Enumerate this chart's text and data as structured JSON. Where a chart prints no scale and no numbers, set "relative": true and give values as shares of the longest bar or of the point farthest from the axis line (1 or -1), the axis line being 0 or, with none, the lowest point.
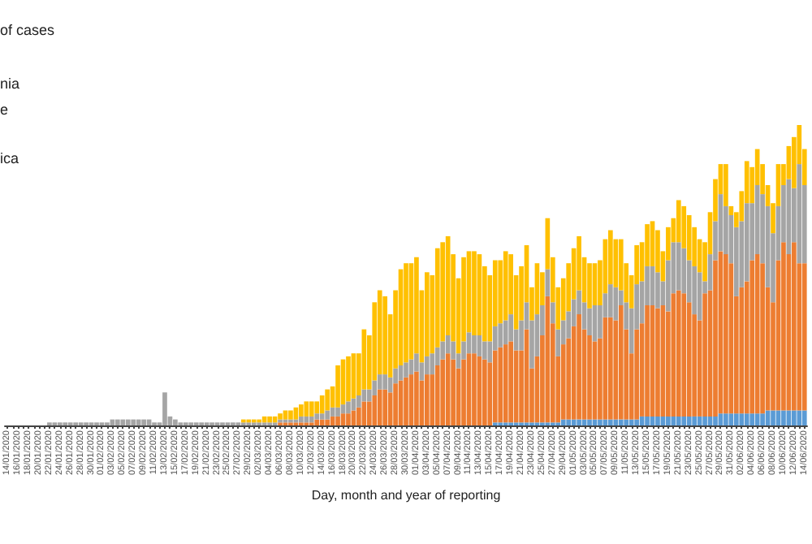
{
  "chart_data": {
    "type": "bar",
    "stacked": true,
    "relative": true,
    "xlabel": "Day, month and year of reporting",
    "annotations": [
      "of cases",
      "nia",
      "e",
      "ica"
    ],
    "categories": [
      "14/01/2020",
      null,
      "16/01/2020",
      null,
      "18/01/2020",
      null,
      "20/01/2020",
      null,
      "22/01/2020",
      null,
      "24/01/2020",
      null,
      "26/01/2020",
      null,
      "28/01/2020",
      null,
      "30/01/2020",
      null,
      "01/02/2020",
      null,
      "03/02/2020",
      null,
      "05/02/2020",
      null,
      "07/02/2020",
      null,
      "09/02/2020",
      null,
      "11/02/2020",
      null,
      "13/02/2020",
      null,
      "15/02/2020",
      null,
      "17/02/2020",
      null,
      "19/02/2020",
      null,
      "21/02/2020",
      null,
      "23/02/2020",
      null,
      "25/02/2020",
      null,
      "27/02/2020",
      null,
      "29/02/2020",
      null,
      "02/03/2020",
      null,
      "04/03/2020",
      null,
      "06/03/2020",
      null,
      "08/03/2020",
      null,
      "10/03/2020",
      null,
      "12/03/2020",
      null,
      "14/03/2020",
      null,
      "16/03/2020",
      null,
      "18/03/2020",
      null,
      "20/03/2020",
      null,
      "22/03/2020",
      null,
      "24/03/2020",
      null,
      "26/03/2020",
      null,
      "28/03/2020",
      null,
      "30/03/2020",
      null,
      "01/04/2020",
      null,
      "03/04/2020",
      null,
      "05/04/2020",
      null,
      "07/04/2020",
      null,
      "09/04/2020",
      null,
      "11/04/2020",
      null,
      "13/04/2020",
      null,
      "15/04/2020",
      null,
      "17/04/2020",
      null,
      "19/04/2020",
      null,
      "21/04/2020",
      null,
      "23/04/2020",
      null,
      "25/04/2020",
      null,
      "27/04/2020",
      null,
      "29/04/2020",
      null,
      "01/05/2020",
      null,
      "03/05/2020",
      null,
      "05/05/2020",
      null,
      "07/05/2020",
      null,
      "09/05/2020",
      null,
      "11/05/2020",
      null,
      "13/05/2020",
      null,
      "15/05/2020",
      null,
      "17/05/2020",
      null,
      "19/05/2020",
      null,
      "21/05/2020",
      null,
      "23/05/2020",
      null,
      "25/05/2020",
      null,
      "27/05/2020",
      null,
      "29/05/2020",
      null,
      "31/05/2020",
      null,
      "02/06/2020",
      null,
      "04/06/2020",
      null,
      "06/06/2020",
      null,
      "08/06/2020",
      null,
      "10/06/2020",
      null,
      "12/06/2020",
      null,
      "14/06/2020"
    ],
    "series": [
      {
        "color": "#5b9bd5",
        "values": [
          null,
          null,
          null,
          null,
          null,
          null,
          null,
          null,
          null,
          null,
          null,
          null,
          null,
          null,
          null,
          null,
          null,
          null,
          null,
          null,
          null,
          null,
          null,
          null,
          null,
          null,
          null,
          null,
          null,
          null,
          null,
          null,
          null,
          null,
          null,
          null,
          null,
          null,
          null,
          null,
          null,
          null,
          null,
          null,
          null,
          null,
          null,
          null,
          null,
          null,
          null,
          null,
          null,
          null,
          null,
          null,
          null,
          null,
          null,
          null,
          null,
          null,
          null,
          null,
          null,
          null,
          null,
          null,
          null,
          null,
          null,
          null,
          null,
          null,
          null,
          null,
          null,
          null,
          null,
          null,
          null,
          null,
          null,
          null,
          null,
          null,
          null,
          null,
          null,
          null,
          null,
          null,
          null,
          0.01,
          0.01,
          0.01,
          0.01,
          0.01,
          0.01,
          0.01,
          0.01,
          0.01,
          0.01,
          0.01,
          0.01,
          0.01,
          0.02,
          0.02,
          0.02,
          0.02,
          0.02,
          0.02,
          0.02,
          0.02,
          0.02,
          0.02,
          0.02,
          0.02,
          0.02,
          0.02,
          0.02,
          0.03,
          0.03,
          0.03,
          0.03,
          0.03,
          0.03,
          0.03,
          0.03,
          0.03,
          0.03,
          0.03,
          0.03,
          0.03,
          0.03,
          0.03,
          0.04,
          0.04,
          0.04,
          0.04,
          0.04,
          0.04,
          0.04,
          0.04,
          0.04,
          0.05,
          0.05,
          0.05,
          0.05,
          0.05,
          0.05,
          0.05,
          0.05
        ]
      },
      {
        "color": "#ed7d31",
        "values": [
          null,
          null,
          null,
          null,
          null,
          null,
          null,
          null,
          null,
          null,
          null,
          null,
          null,
          null,
          null,
          null,
          null,
          null,
          null,
          null,
          null,
          null,
          null,
          null,
          null,
          null,
          null,
          null,
          null,
          null,
          null,
          null,
          null,
          null,
          null,
          null,
          null,
          null,
          null,
          null,
          null,
          null,
          null,
          null,
          null,
          null,
          null,
          null,
          null,
          null,
          null,
          null,
          0.01,
          0.01,
          0.01,
          0.01,
          0.01,
          0.01,
          0.01,
          0.02,
          0.02,
          0.02,
          0.03,
          0.03,
          0.04,
          0.04,
          0.05,
          0.06,
          0.08,
          0.08,
          0.1,
          0.12,
          0.12,
          0.11,
          0.14,
          0.15,
          0.16,
          0.17,
          0.18,
          0.15,
          0.17,
          0.17,
          0.2,
          0.22,
          0.24,
          0.22,
          0.19,
          0.22,
          0.24,
          0.24,
          0.23,
          0.22,
          0.21,
          0.24,
          0.25,
          0.26,
          0.27,
          0.24,
          0.24,
          0.31,
          0.18,
          0.22,
          0.29,
          0.42,
          0.33,
          0.22,
          0.25,
          0.27,
          0.31,
          0.35,
          0.3,
          0.28,
          0.26,
          0.27,
          0.34,
          0.34,
          0.33,
          0.38,
          0.3,
          0.22,
          0.3,
          0.31,
          0.37,
          0.37,
          0.36,
          0.37,
          0.35,
          0.41,
          0.42,
          0.41,
          0.38,
          0.34,
          0.32,
          0.41,
          0.42,
          0.52,
          0.54,
          0.53,
          0.5,
          0.39,
          0.42,
          0.44,
          0.51,
          0.53,
          0.5,
          0.41,
          0.36,
          0.5,
          0.56,
          0.52,
          0.56,
          0.49,
          0.49
        ]
      },
      {
        "color": "#a5a5a5",
        "values": [
          null,
          null,
          null,
          null,
          null,
          null,
          null,
          null,
          0.01,
          0.01,
          0.01,
          0.01,
          0.01,
          0.01,
          0.01,
          0.01,
          0.01,
          0.01,
          0.01,
          0.01,
          0.02,
          0.02,
          0.02,
          0.02,
          0.02,
          0.02,
          0.02,
          0.02,
          0.01,
          0.01,
          0.11,
          0.03,
          0.02,
          0.01,
          0.01,
          0.01,
          0.01,
          0.01,
          0.01,
          0.01,
          0.01,
          0.01,
          0.01,
          0.01,
          0.01,
          0.01,
          0.01,
          0.01,
          0.01,
          0.01,
          0.01,
          0.01,
          0.01,
          0.01,
          0.01,
          0.01,
          0.02,
          0.02,
          0.02,
          0.02,
          0.02,
          0.03,
          0.03,
          0.03,
          0.03,
          0.04,
          0.04,
          0.04,
          0.04,
          0.04,
          0.05,
          0.05,
          0.05,
          0.05,
          0.05,
          0.05,
          0.05,
          0.05,
          0.06,
          0.06,
          0.06,
          0.07,
          0.06,
          0.06,
          0.06,
          0.06,
          0.05,
          0.06,
          0.07,
          0.06,
          0.07,
          0.06,
          0.07,
          0.08,
          0.08,
          0.08,
          0.09,
          0.07,
          0.1,
          0.09,
          0.16,
          0.14,
          0.1,
          0.09,
          0.07,
          0.09,
          0.08,
          0.09,
          0.09,
          0.08,
          0.09,
          0.09,
          0.12,
          0.11,
          0.08,
          0.11,
          0.11,
          0.05,
          0.09,
          0.15,
          0.15,
          0.14,
          0.13,
          0.13,
          0.12,
          0.08,
          0.17,
          0.17,
          0.16,
          0.15,
          0.14,
          0.16,
          0.16,
          0.04,
          0.12,
          0.13,
          0.19,
          0.16,
          0.16,
          0.23,
          0.22,
          0.26,
          0.19,
          0.23,
          0.23,
          0.27,
          0.23,
          0.18,
          0.19,
          0.25,
          0.18,
          0.33,
          0.26
        ]
      },
      {
        "color": "#ffc000",
        "values": [
          null,
          null,
          null,
          null,
          null,
          null,
          null,
          null,
          null,
          null,
          null,
          null,
          null,
          null,
          null,
          null,
          null,
          null,
          null,
          null,
          null,
          null,
          null,
          null,
          null,
          null,
          null,
          null,
          null,
          null,
          null,
          null,
          null,
          null,
          null,
          null,
          null,
          null,
          null,
          null,
          null,
          null,
          null,
          null,
          null,
          0.01,
          0.01,
          0.01,
          0.01,
          0.02,
          0.02,
          0.02,
          0.02,
          0.03,
          0.03,
          0.04,
          0.04,
          0.05,
          0.05,
          0.04,
          0.06,
          0.07,
          0.07,
          0.14,
          0.15,
          0.15,
          0.15,
          0.14,
          0.2,
          0.18,
          0.26,
          0.28,
          0.26,
          0.21,
          0.26,
          0.32,
          0.33,
          0.32,
          0.32,
          0.24,
          0.28,
          0.26,
          0.33,
          0.33,
          0.33,
          0.29,
          0.25,
          0.28,
          0.27,
          0.28,
          0.27,
          0.25,
          0.22,
          0.22,
          0.21,
          0.23,
          0.2,
          0.18,
          0.18,
          0.19,
          0.11,
          0.17,
          0.11,
          0.17,
          0.15,
          0.14,
          0.14,
          0.16,
          0.17,
          0.18,
          0.15,
          0.15,
          0.14,
          0.15,
          0.18,
          0.18,
          0.16,
          0.17,
          0.13,
          0.11,
          0.13,
          0.13,
          0.14,
          0.15,
          0.14,
          0.1,
          0.11,
          0.08,
          0.14,
          0.14,
          0.15,
          0.13,
          0.11,
          0.13,
          0.14,
          0.14,
          0.1,
          0.14,
          0.03,
          0.05,
          0.1,
          0.14,
          0.12,
          0.12,
          0.1,
          0.07,
          0.1,
          0.14,
          0.07,
          0.11,
          0.17,
          0.13,
          0.12
        ]
      }
    ]
  }
}
